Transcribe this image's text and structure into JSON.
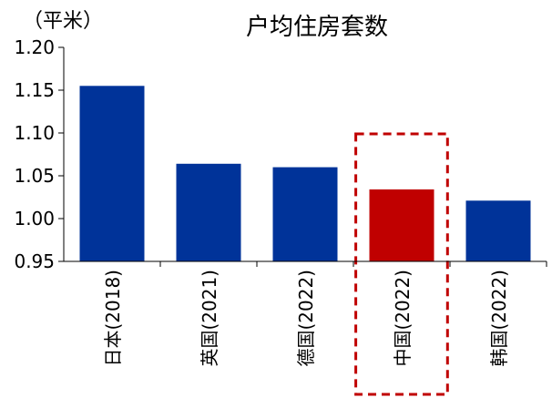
{
  "chart_data": {
    "type": "bar",
    "title": "户均住房套数",
    "unit_label": "（平米）",
    "categories": [
      "日本(2018)",
      "英国(2021)",
      "德国(2022)",
      "中国(2022)",
      "韩国(2022)"
    ],
    "values": [
      1.155,
      1.064,
      1.06,
      1.034,
      1.021
    ],
    "ylim": [
      0.95,
      1.2
    ],
    "yticks": [
      "0.95",
      "1.00",
      "1.05",
      "1.10",
      "1.15",
      "1.20"
    ],
    "highlight_index": 3,
    "colors": {
      "bar": "#003399",
      "highlight": "#C00000",
      "highlight_box": "#C00000",
      "axis": "#000000"
    },
    "grid": false,
    "legend": "none"
  }
}
